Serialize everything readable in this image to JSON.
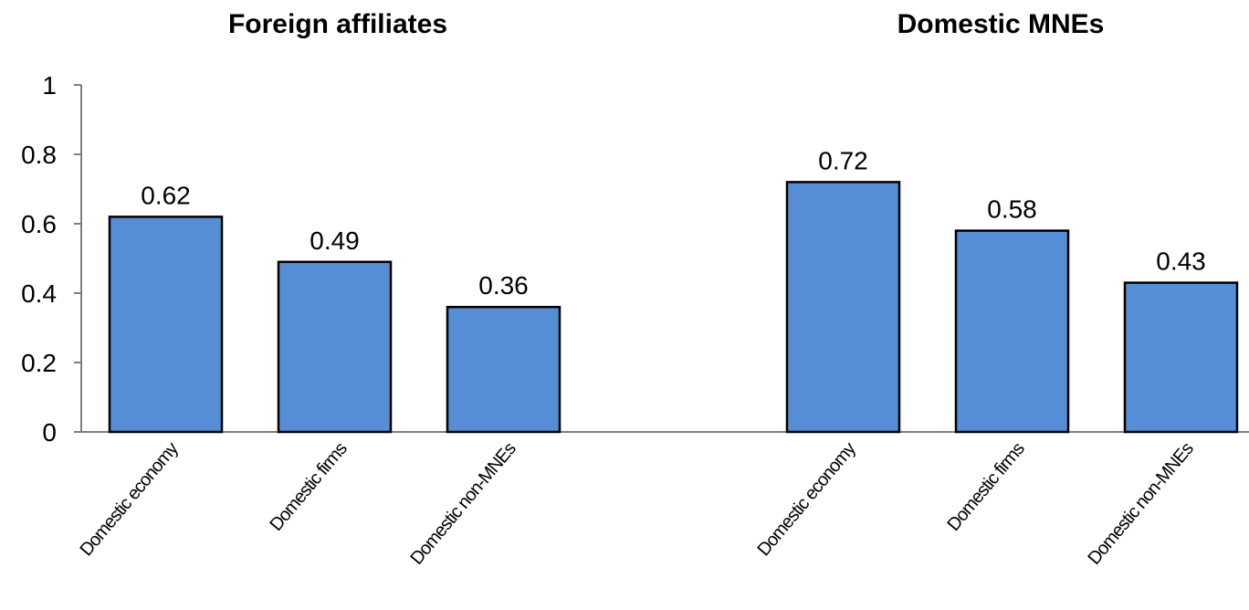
{
  "chart_data": {
    "type": "bar",
    "panels": [
      {
        "title": "Foreign affiliates",
        "categories": [
          "Domestic economy",
          "Domestic firms",
          "Domestic non-MNEs"
        ],
        "values": [
          0.62,
          0.49,
          0.36
        ]
      },
      {
        "title": "Domestic MNEs",
        "categories": [
          "Domestic economy",
          "Domestic firms",
          "Domestic non-MNEs"
        ],
        "values": [
          0.72,
          0.58,
          0.43
        ]
      }
    ],
    "data_labels": [
      "0.62",
      "0.49",
      "0.36",
      "0.72",
      "0.58",
      "0.43"
    ],
    "ylim": [
      0,
      1
    ],
    "yticks": [
      "0",
      "0.2",
      "0.4",
      "0.6",
      "0.8",
      "1"
    ],
    "grid": false,
    "legend": "none",
    "bar_color": "#558ED5",
    "bar_edge_color": "#000000"
  }
}
